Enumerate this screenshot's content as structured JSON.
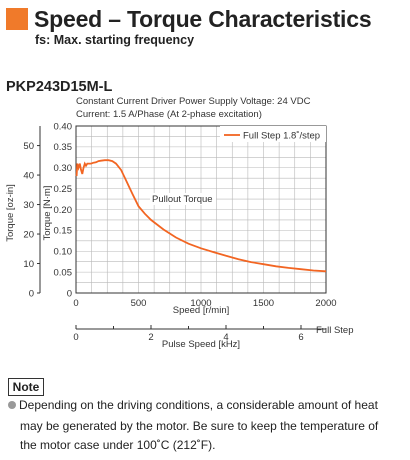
{
  "header": {
    "title": "Speed – Torque Characteristics",
    "subtitle": "fs: Max. starting frequency"
  },
  "model": "PKP243D15M-L",
  "conditions": {
    "line1": "Constant Current Driver    Power Supply Voltage: 24 VDC",
    "line2": "Current: 1.5 A/Phase (At 2-phase excitation)"
  },
  "chart_data": {
    "type": "line",
    "xlabel": "Speed [r/min]",
    "x2label": "Pulse Speed [kHz]",
    "x2_end_label": "Full Step",
    "ylabel": "Torque [N·m]",
    "y2label": "Torque [oz-in]",
    "xlim": [
      0,
      2000
    ],
    "ylim": [
      0,
      0.4
    ],
    "x_ticks": [
      "0",
      "500",
      "1000",
      "1500",
      "2000"
    ],
    "y_ticks": [
      "0",
      "0.05",
      "0.10",
      "0.15",
      "0.20",
      "0.25",
      "0.30",
      "0.35",
      "0.40"
    ],
    "y2_ticks": [
      "0",
      "10",
      "20",
      "30",
      "40",
      "50"
    ],
    "x2_ticks": [
      "0",
      "2",
      "4",
      "6"
    ],
    "grid": true,
    "legend_position": "top-right",
    "series": [
      {
        "name": "Full Step 1.8˚/step",
        "color": "#f26522",
        "x": [
          5,
          10,
          20,
          30,
          40,
          50,
          60,
          70,
          80,
          90,
          100,
          120,
          140,
          160,
          180,
          200,
          230,
          260,
          290,
          320,
          360,
          400,
          450,
          500,
          550,
          600,
          700,
          800,
          900,
          1000,
          1100,
          1200,
          1300,
          1400,
          1500,
          1600,
          1700,
          1800,
          1900,
          2000
        ],
        "y": [
          0.28,
          0.31,
          0.3,
          0.31,
          0.295,
          0.285,
          0.3,
          0.31,
          0.305,
          0.31,
          0.31,
          0.31,
          0.312,
          0.313,
          0.316,
          0.317,
          0.318,
          0.318,
          0.316,
          0.31,
          0.295,
          0.27,
          0.238,
          0.208,
          0.19,
          0.175,
          0.152,
          0.133,
          0.118,
          0.107,
          0.098,
          0.089,
          0.081,
          0.074,
          0.069,
          0.064,
          0.06,
          0.057,
          0.054,
          0.052
        ]
      }
    ],
    "annotations": [
      "Pullout Torque"
    ]
  },
  "note": {
    "label": "Note",
    "line1": "Depending on the driving conditions, a considerable amount of heat",
    "line2": "may be generated by the motor. Be sure to keep the temperature of",
    "line3": "the motor case under 100˚C (212˚F)."
  },
  "colors": {
    "accent": "#f07a2a",
    "curve": "#f26522",
    "grid": "#b9b9b9"
  }
}
